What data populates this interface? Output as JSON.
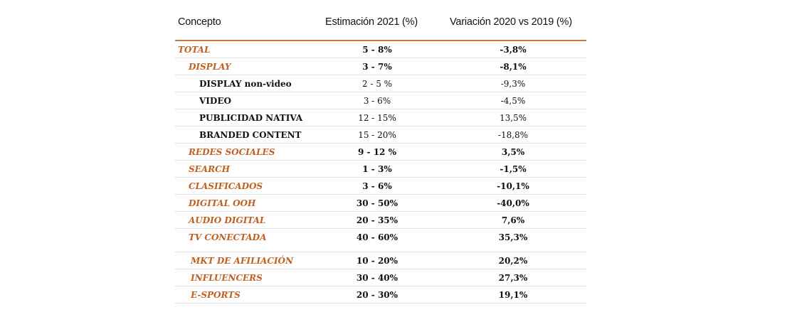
{
  "header": {
    "concept": "Concepto",
    "estimate": "Estimación 2021 (%)",
    "variation": "Variación 2020 vs 2019 (%)"
  },
  "rows": [
    {
      "concept": "TOTAL",
      "estimate": "5 - 8%",
      "variation": "-3,8%"
    },
    {
      "concept": "DISPLAY",
      "estimate": "3 - 7%",
      "variation": "-8,1%"
    },
    {
      "concept": "DISPLAY non-video",
      "estimate": "2 - 5 %",
      "variation": "-9,3%"
    },
    {
      "concept": "VIDEO",
      "estimate": "3 - 6%",
      "variation": "-4,5%"
    },
    {
      "concept": "PUBLICIDAD NATIVA",
      "estimate": "12 - 15%",
      "variation": "13,5%"
    },
    {
      "concept": "BRANDED CONTENT",
      "estimate": "15 - 20%",
      "variation": "-18,8%"
    },
    {
      "concept": "REDES SOCIALES",
      "estimate": "9 - 12 %",
      "variation": "3,5%"
    },
    {
      "concept": "SEARCH",
      "estimate": "1 - 3%",
      "variation": "-1,5%"
    },
    {
      "concept": "CLASIFICADOS",
      "estimate": "3 - 6%",
      "variation": "-10,1%"
    },
    {
      "concept": "DIGITAL OOH",
      "estimate": "30 - 50%",
      "variation": "-40,0%"
    },
    {
      "concept": "AUDIO DIGITAL",
      "estimate": "20 - 35%",
      "variation": "7,6%"
    },
    {
      "concept": "TV CONECTADA",
      "estimate": "40 - 60%",
      "variation": "35,3%"
    },
    {
      "concept": "MKT DE AFILIACIÓN",
      "estimate": "10 - 20%",
      "variation": "20,2%"
    },
    {
      "concept": "INFLUENCERS",
      "estimate": "30 - 40%",
      "variation": "27,3%"
    },
    {
      "concept": "E-SPORTS",
      "estimate": "20 - 30%",
      "variation": "19,1%"
    }
  ],
  "colors": {
    "accent": "#c0601f",
    "rule": "#c8773a",
    "divider": "#e2e2e2"
  }
}
